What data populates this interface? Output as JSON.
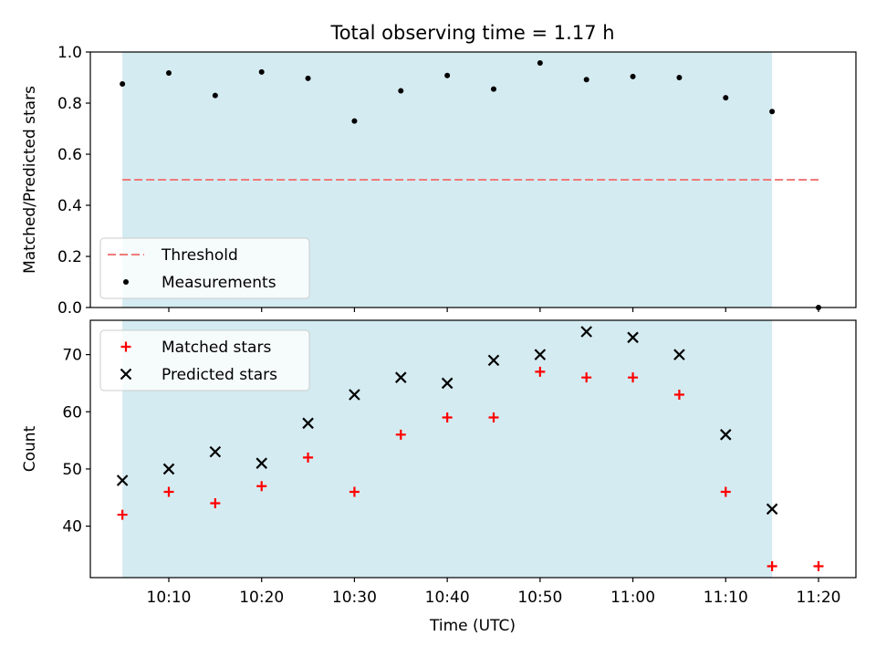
{
  "title": "Total observing time = 1.17 h",
  "xlabel": "Time (UTC)",
  "x_ticks": [
    "10:10",
    "10:20",
    "10:30",
    "10:40",
    "10:50",
    "11:00",
    "11:10",
    "11:20"
  ],
  "colors": {
    "span": "#d4ebf1",
    "threshold": "#f07a7a",
    "measurement": "#000000",
    "matched": "#ff0000",
    "predicted": "#000000"
  },
  "chart_data": [
    {
      "type": "scatter",
      "ylabel": "Matched/Predicted stars",
      "ylim": [
        0,
        1.0
      ],
      "y_ticks": [
        "0.0",
        "0.2",
        "0.4",
        "0.6",
        "0.8",
        "1.0"
      ],
      "x_unit": "time UTC",
      "shaded_span": [
        "10:05",
        "11:15"
      ],
      "legend_position": "lower-left",
      "series": [
        {
          "name": "Threshold",
          "style": "dashed-line",
          "x": [
            "10:05",
            "11:20"
          ],
          "values": [
            0.5,
            0.5
          ]
        },
        {
          "name": "Measurements",
          "style": "dot",
          "x": [
            "10:05",
            "10:10",
            "10:15",
            "10:20",
            "10:25",
            "10:30",
            "10:35",
            "10:40",
            "10:45",
            "10:50",
            "10:55",
            "11:00",
            "11:05",
            "11:10",
            "11:15",
            "11:20"
          ],
          "values": [
            0.875,
            0.918,
            0.83,
            0.922,
            0.897,
            0.73,
            0.848,
            0.908,
            0.855,
            0.957,
            0.892,
            0.904,
            0.9,
            0.821,
            0.767,
            0.0
          ]
        }
      ]
    },
    {
      "type": "scatter",
      "ylabel": "Count",
      "ylim": [
        31,
        76
      ],
      "y_ticks": [
        "40",
        "50",
        "60",
        "70"
      ],
      "x_unit": "time UTC",
      "shaded_span": [
        "10:05",
        "11:15"
      ],
      "legend_position": "upper-left",
      "series": [
        {
          "name": "Matched stars",
          "style": "plus",
          "x": [
            "10:05",
            "10:10",
            "10:15",
            "10:20",
            "10:25",
            "10:30",
            "10:35",
            "10:40",
            "10:45",
            "10:50",
            "10:55",
            "11:00",
            "11:05",
            "11:10",
            "11:15",
            "11:20"
          ],
          "values": [
            42,
            46,
            44,
            47,
            52,
            46,
            56,
            59,
            59,
            67,
            66,
            66,
            63,
            46,
            33,
            33
          ]
        },
        {
          "name": "Predicted stars",
          "style": "x",
          "x": [
            "10:05",
            "10:10",
            "10:15",
            "10:20",
            "10:25",
            "10:30",
            "10:35",
            "10:40",
            "10:45",
            "10:50",
            "10:55",
            "11:00",
            "11:05",
            "11:10",
            "11:15"
          ],
          "values": [
            48,
            50,
            53,
            51,
            58,
            63,
            66,
            65,
            69,
            70,
            74,
            73,
            70,
            56,
            43
          ]
        }
      ]
    }
  ]
}
